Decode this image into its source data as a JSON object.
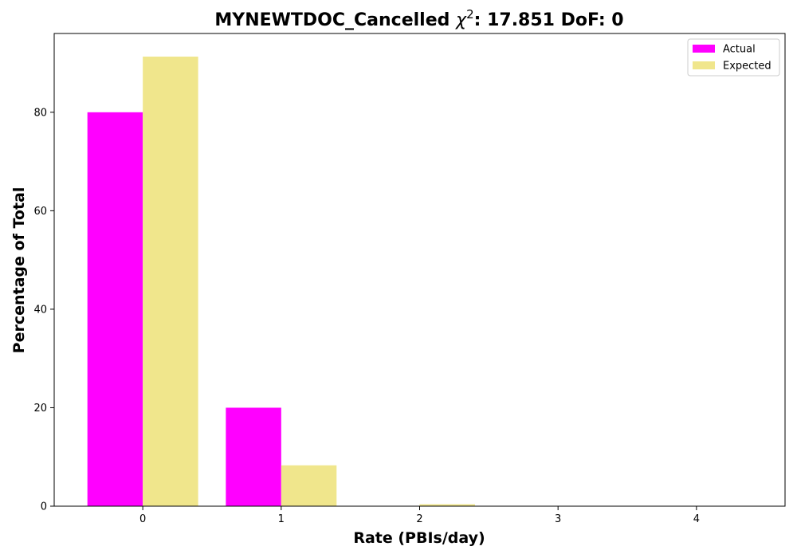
{
  "chart_data": {
    "type": "bar",
    "title": "MYNEWTDOC_Cancelled χ²: 17.851 DoF: 0",
    "title_parts": {
      "prefix": "MYNEWTDOC_Cancelled ",
      "chi_symbol": "χ",
      "chi_exponent": "2",
      "suffix": ": 17.851 DoF: 0"
    },
    "xlabel": "Rate (PBIs/day)",
    "ylabel": "Percentage of Total",
    "categories": [
      "0",
      "1",
      "2",
      "3",
      "4"
    ],
    "x_values": [
      0,
      1,
      2,
      3,
      4
    ],
    "xlim": [
      -0.64,
      4.64
    ],
    "ylim": [
      0,
      96
    ],
    "y_ticks": [
      0,
      20,
      40,
      60,
      80
    ],
    "grid": false,
    "legend_position": "top-right",
    "series": [
      {
        "name": "Actual",
        "color": "#ff00ff",
        "values": [
          80,
          20,
          0,
          0,
          0
        ]
      },
      {
        "name": "Expected",
        "color": "#f0e68c",
        "values": [
          91.3,
          8.3,
          0.4,
          0,
          0
        ]
      }
    ]
  }
}
